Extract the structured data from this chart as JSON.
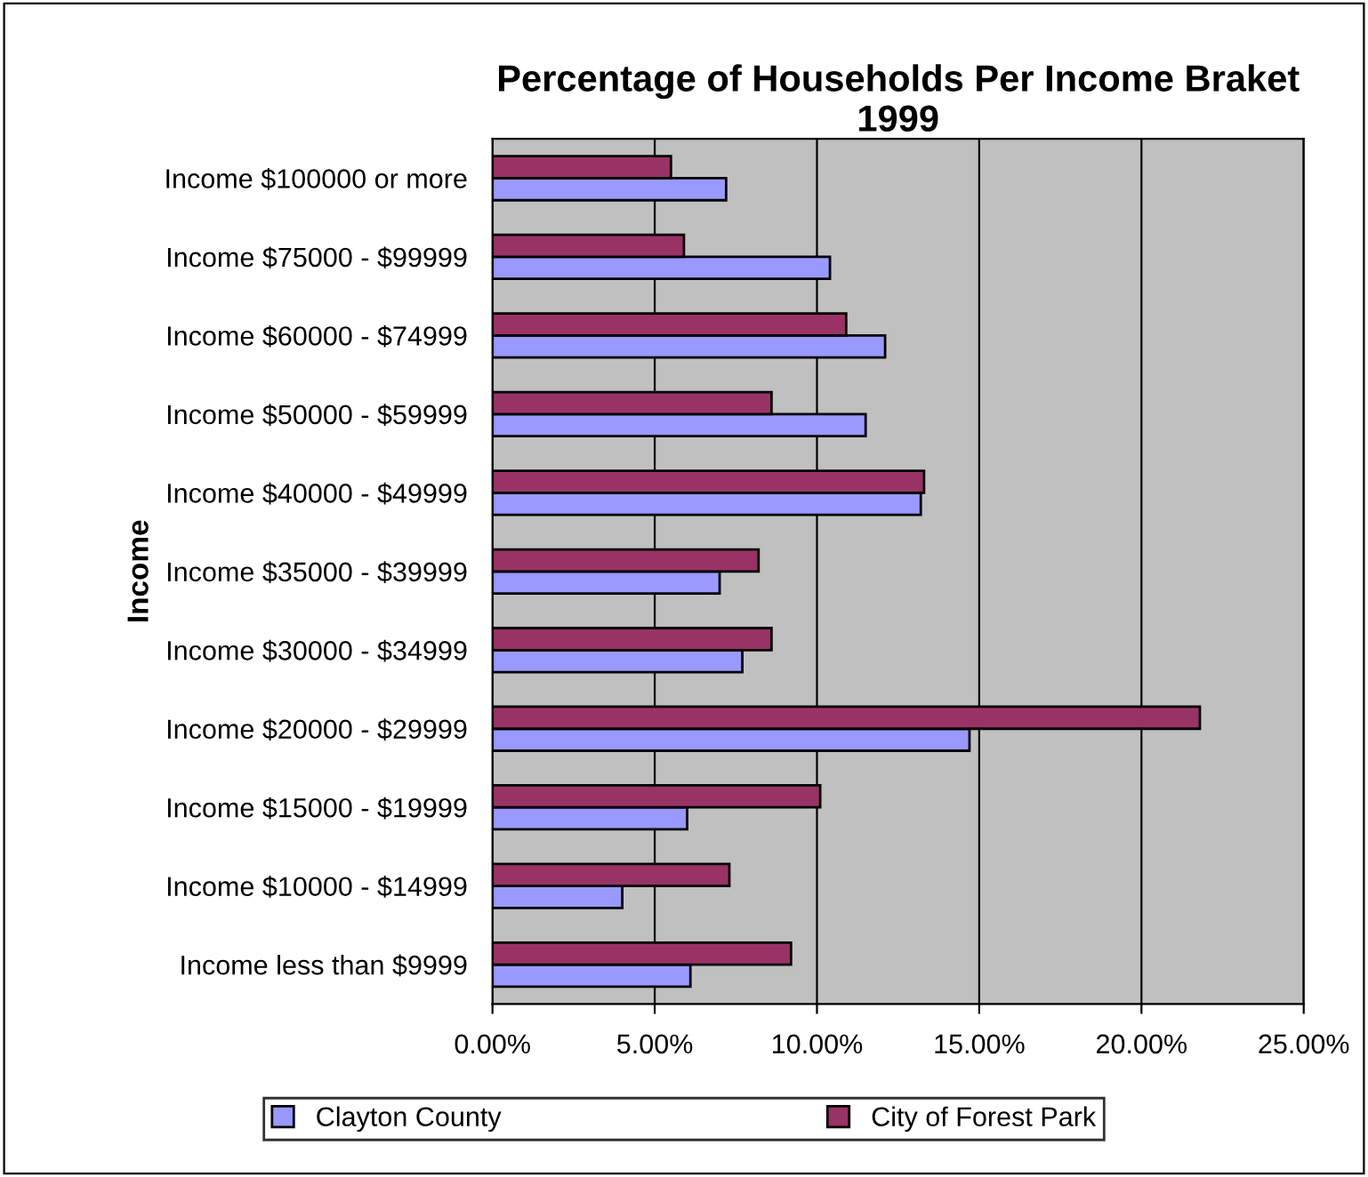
{
  "chart_data": {
    "type": "bar",
    "orientation": "horizontal",
    "title": "Percentage of Households Per Income Braket\n1999",
    "ylabel": "Income",
    "categories": [
      "Income $100000 or more",
      "Income $75000 - $99999",
      "Income $60000 - $74999",
      "Income $50000 - $59999",
      "Income $40000 - $49999",
      "Income $35000 - $39999",
      "Income $30000 - $34999",
      "Income $20000 - $29999",
      "Income $15000 - $19999",
      "Income $10000 - $14999",
      "Income less than $9999"
    ],
    "series": [
      {
        "name": "Clayton County",
        "color": "#9999ff",
        "values": [
          7.2,
          10.4,
          12.1,
          11.5,
          13.2,
          7.0,
          7.7,
          14.7,
          6.0,
          4.0,
          6.1
        ]
      },
      {
        "name": "City of Forest Park",
        "color": "#993366",
        "values": [
          5.5,
          5.9,
          10.9,
          8.6,
          13.3,
          8.2,
          8.6,
          21.8,
          10.1,
          7.3,
          9.2
        ]
      }
    ],
    "xlim": [
      0,
      25
    ],
    "xticks": [
      {
        "value": 0,
        "label": "0.00%"
      },
      {
        "value": 5,
        "label": "5.00%"
      },
      {
        "value": 10,
        "label": "10.00%"
      },
      {
        "value": 15,
        "label": "15.00%"
      },
      {
        "value": 20,
        "label": "20.00%"
      },
      {
        "value": 25,
        "label": "25.00%"
      }
    ],
    "grid": "x",
    "legend": "bottom"
  }
}
